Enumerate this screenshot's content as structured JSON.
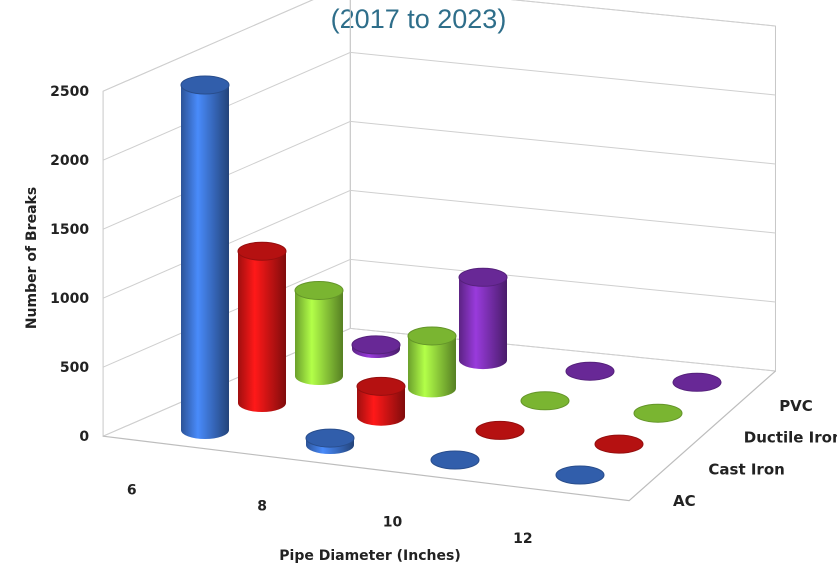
{
  "chart_data": {
    "type": "bar",
    "title": "(2017 to 2023)",
    "xlabel": "Pipe Diameter (Inches)",
    "ylabel": "Number of Breaks",
    "categories": [
      "6",
      "8",
      "10",
      "12"
    ],
    "series": [
      {
        "name": "AC",
        "values": [
          2500,
          50,
          0,
          0
        ]
      },
      {
        "name": "Cast Iron",
        "values": [
          1100,
          220,
          0,
          0
        ]
      },
      {
        "name": "Ductile Iron",
        "values": [
          620,
          380,
          0,
          0
        ]
      },
      {
        "name": "PVC",
        "values": [
          30,
          600,
          0,
          0
        ]
      }
    ],
    "yticks": [
      "0",
      "500",
      "1000",
      "1500",
      "2000",
      "2500"
    ],
    "ylim": [
      0,
      2500
    ],
    "grid": true,
    "colors": {
      "AC": "#3a6fc9",
      "Cast Iron": "#d51414",
      "Ductile Iron": "#8fd53a",
      "PVC": "#7a2fb0"
    }
  }
}
